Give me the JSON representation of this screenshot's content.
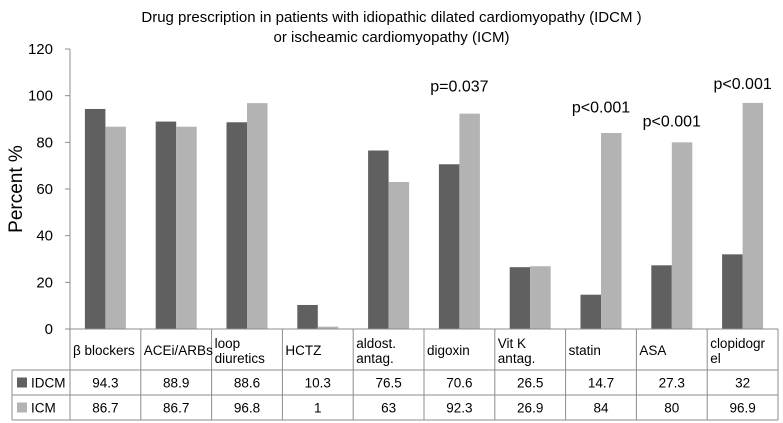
{
  "chart_data": {
    "type": "bar",
    "title_lines": [
      "Drug prescription in patients with idiopathic  dilated cardiomyopathy (IDCM )",
      "or  ischeamic cardiomyopathy (ICM)"
    ],
    "ylabel": "Percent %",
    "ylim": [
      0,
      120
    ],
    "yticks": [
      "0",
      "20",
      "40",
      "60",
      "80",
      "100",
      "120"
    ],
    "grid": false,
    "legend": "data table below the plot",
    "categories": [
      [
        "β blockers"
      ],
      [
        "ACEi/ARBs"
      ],
      [
        "loop",
        "diuretics"
      ],
      [
        "HCTZ"
      ],
      [
        "aldost.",
        "antag."
      ],
      [
        "digoxin"
      ],
      [
        "Vit K",
        "antag."
      ],
      [
        "statin"
      ],
      [
        "ASA"
      ],
      [
        "clopidogr",
        "el"
      ]
    ],
    "series": [
      {
        "name": "IDCM",
        "color": "#606060",
        "values": [
          94.3,
          88.9,
          88.6,
          10.3,
          76.5,
          70.6,
          26.5,
          14.7,
          27.3,
          32
        ]
      },
      {
        "name": "ICM",
        "color": "#b3b3b3",
        "values": [
          86.7,
          86.7,
          96.8,
          1,
          63,
          92.3,
          26.9,
          84,
          80,
          96.9
        ]
      }
    ],
    "table_rows": [
      [
        "94.3",
        "88.9",
        "88.6",
        "10.3",
        "76.5",
        "70.6",
        "26.5",
        "14.7",
        "27.3",
        "32"
      ],
      [
        "86.7",
        "86.7",
        "96.8",
        "1",
        "63",
        "92.3",
        "26.9",
        "84",
        "80",
        "96.9"
      ]
    ],
    "annotations": [
      {
        "text": "p=0.037",
        "category": 5,
        "y": 104
      },
      {
        "text": "p<0.001",
        "category": 7,
        "y": 95
      },
      {
        "text": "p<0.001",
        "category": 8,
        "y": 89
      },
      {
        "text": "p<0.001",
        "category": 9,
        "y": 105
      }
    ]
  }
}
